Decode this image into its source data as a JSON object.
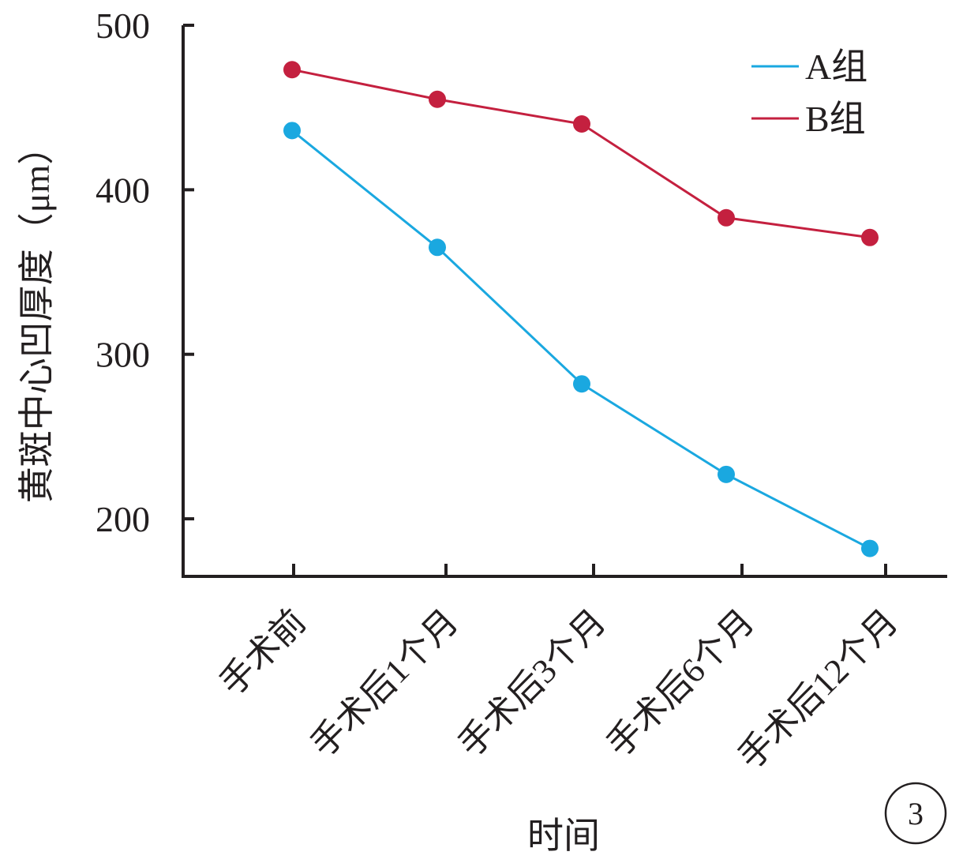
{
  "chart_data": {
    "type": "line",
    "categories": [
      "手术前",
      "手术后1个月",
      "手术后3个月",
      "手术后6个月",
      "手术后12个月"
    ],
    "series": [
      {
        "name": "A组",
        "values": [
          436,
          365,
          282,
          227,
          182
        ],
        "color": "#1aa8e0"
      },
      {
        "name": "B组",
        "values": [
          473,
          455,
          440,
          383,
          371
        ],
        "color": "#c4203f"
      }
    ],
    "xlabel": "时间",
    "ylabel": "黄斑中心凹厚度（μm）",
    "ylim": [
      165,
      500
    ],
    "yticks": [
      200,
      300,
      400,
      500
    ],
    "grid": false,
    "legend": "top-right"
  },
  "panel_label": "3"
}
